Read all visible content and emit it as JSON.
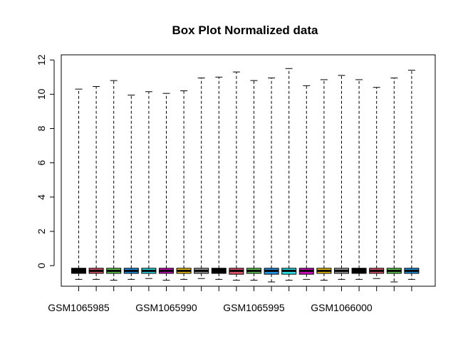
{
  "chart_data": {
    "type": "box",
    "title": "Box Plot Normalized data",
    "xlabel": "",
    "ylabel": "",
    "ylim": [
      -1.2,
      12.3
    ],
    "y_ticks": [
      0,
      2,
      4,
      6,
      8,
      10,
      12
    ],
    "x_tick_labels_shown": [
      "GSM1065985",
      "",
      "",
      "",
      "",
      "GSM1065990",
      "",
      "",
      "",
      "",
      "GSM1065995",
      "",
      "",
      "",
      "",
      "GSM1066000",
      "",
      "",
      "",
      ""
    ],
    "series": [
      {
        "color": "#000000",
        "min": -0.8,
        "q1": -0.45,
        "median": -0.3,
        "q3": -0.15,
        "max": 10.3
      },
      {
        "color": "#DF536B",
        "min": -0.8,
        "q1": -0.45,
        "median": -0.3,
        "q3": -0.15,
        "max": 10.45
      },
      {
        "color": "#61D04F",
        "min": -0.85,
        "q1": -0.45,
        "median": -0.3,
        "q3": -0.15,
        "max": 10.8
      },
      {
        "color": "#2297E6",
        "min": -0.8,
        "q1": -0.45,
        "median": -0.3,
        "q3": -0.15,
        "max": 9.95
      },
      {
        "color": "#28E2E5",
        "min": -0.75,
        "q1": -0.45,
        "median": -0.3,
        "q3": -0.15,
        "max": 10.15
      },
      {
        "color": "#CD0BBC",
        "min": -0.85,
        "q1": -0.45,
        "median": -0.3,
        "q3": -0.15,
        "max": 10.05
      },
      {
        "color": "#F5C710",
        "min": -0.8,
        "q1": -0.45,
        "median": -0.3,
        "q3": -0.15,
        "max": 10.2
      },
      {
        "color": "#9E9E9E",
        "min": -0.75,
        "q1": -0.45,
        "median": -0.3,
        "q3": -0.15,
        "max": 10.95
      },
      {
        "color": "#000000",
        "min": -0.8,
        "q1": -0.45,
        "median": -0.3,
        "q3": -0.15,
        "max": 11.0
      },
      {
        "color": "#DF536B",
        "min": -0.85,
        "q1": -0.5,
        "median": -0.3,
        "q3": -0.15,
        "max": 11.3
      },
      {
        "color": "#61D04F",
        "min": -0.85,
        "q1": -0.45,
        "median": -0.3,
        "q3": -0.15,
        "max": 10.8
      },
      {
        "color": "#2297E6",
        "min": -0.95,
        "q1": -0.5,
        "median": -0.3,
        "q3": -0.15,
        "max": 10.95
      },
      {
        "color": "#28E2E5",
        "min": -0.85,
        "q1": -0.5,
        "median": -0.3,
        "q3": -0.15,
        "max": 11.5
      },
      {
        "color": "#CD0BBC",
        "min": -0.8,
        "q1": -0.5,
        "median": -0.3,
        "q3": -0.15,
        "max": 10.5
      },
      {
        "color": "#F5C710",
        "min": -0.85,
        "q1": -0.45,
        "median": -0.3,
        "q3": -0.15,
        "max": 10.85
      },
      {
        "color": "#9E9E9E",
        "min": -0.8,
        "q1": -0.45,
        "median": -0.3,
        "q3": -0.15,
        "max": 11.1
      },
      {
        "color": "#000000",
        "min": -0.8,
        "q1": -0.45,
        "median": -0.3,
        "q3": -0.15,
        "max": 10.85
      },
      {
        "color": "#DF536B",
        "min": -0.75,
        "q1": -0.45,
        "median": -0.3,
        "q3": -0.15,
        "max": 10.4
      },
      {
        "color": "#61D04F",
        "min": -0.95,
        "q1": -0.45,
        "median": -0.3,
        "q3": -0.15,
        "max": 10.95
      },
      {
        "color": "#2297E6",
        "min": -0.8,
        "q1": -0.45,
        "median": -0.3,
        "q3": -0.15,
        "max": 11.4
      }
    ]
  }
}
